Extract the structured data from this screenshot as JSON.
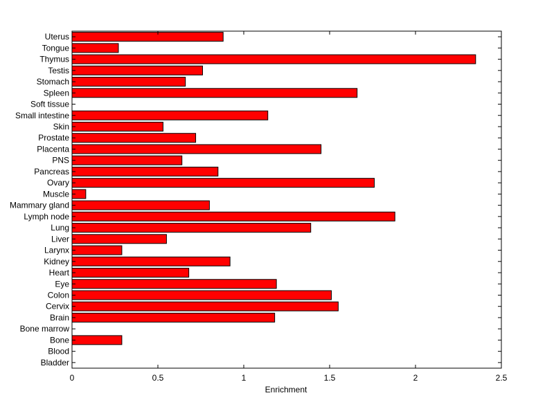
{
  "chart_data": {
    "type": "bar",
    "orientation": "horizontal",
    "title": "",
    "xlabel": "Enrichment",
    "ylabel": "",
    "xlim": [
      0,
      2.5
    ],
    "xticks": [
      "0",
      "0.5",
      "1",
      "1.5",
      "2",
      "2.5"
    ],
    "grid": false,
    "bar_color": "#ff0000",
    "bar_edge_color": "#000000",
    "categories": [
      "Uterus",
      "Tongue",
      "Thymus",
      "Testis",
      "Stomach",
      "Spleen",
      "Soft tissue",
      "Small intestine",
      "Skin",
      "Prostate",
      "Placenta",
      "PNS",
      "Pancreas",
      "Ovary",
      "Muscle",
      "Mammary gland",
      "Lymph node",
      "Lung",
      "Liver",
      "Larynx",
      "Kidney",
      "Heart",
      "Eye",
      "Colon",
      "Cervix",
      "Brain",
      "Bone marrow",
      "Bone",
      "Blood",
      "Bladder"
    ],
    "values": [
      0.88,
      0.27,
      2.35,
      0.76,
      0.66,
      1.66,
      0,
      1.14,
      0.53,
      0.72,
      1.45,
      0.64,
      0.85,
      1.76,
      0.08,
      0.8,
      1.88,
      1.39,
      0.55,
      0.29,
      0.92,
      0.68,
      1.19,
      1.51,
      1.55,
      1.18,
      0,
      0.29,
      0,
      0
    ]
  }
}
